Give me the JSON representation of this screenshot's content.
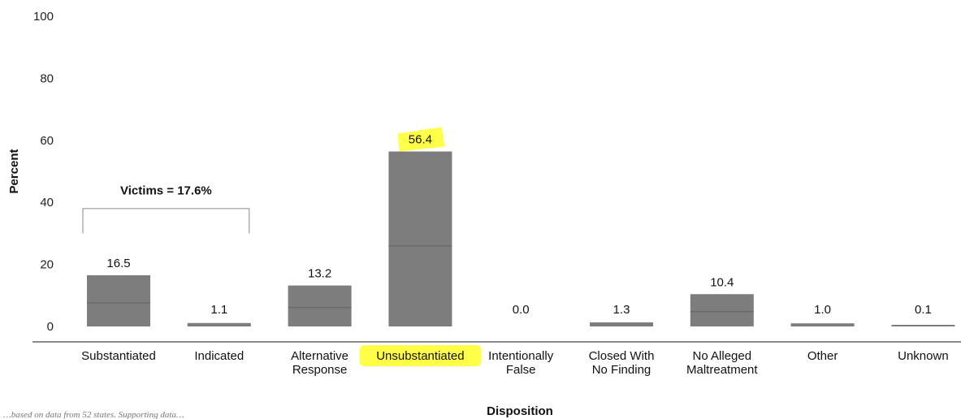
{
  "chart_data": {
    "type": "bar",
    "title": "",
    "xlabel": "Disposition",
    "ylabel": "Percent",
    "ylim": [
      0,
      100
    ],
    "yticks": [
      0,
      20,
      40,
      60,
      80,
      100
    ],
    "grid": false,
    "categories": [
      "Substantiated",
      "Indicated",
      "Alternative\nResponse",
      "Unsubstantiated",
      "Intentionally\nFalse",
      "Closed With\nNo Finding",
      "No Alleged\nMaltreatment",
      "Other",
      "Unknown"
    ],
    "values": [
      16.5,
      1.1,
      13.2,
      56.4,
      0.0,
      1.3,
      10.4,
      1.0,
      0.1
    ],
    "value_labels": [
      "16.5",
      "1.1",
      "13.2",
      "56.4",
      "0.0",
      "1.3",
      "10.4",
      "1.0",
      "0.1"
    ],
    "highlighted_category": "Unsubstantiated",
    "highlighted_value_label": "56.4",
    "annotation": {
      "text": "Victims = 17.6%",
      "spans_categories": [
        "Substantiated",
        "Indicated"
      ]
    },
    "colors": {
      "bar": "#7d7d7d",
      "bar_dark": "#5f5f5f",
      "highlight": "#ffff33",
      "axis": "#444444"
    }
  },
  "footnote": "…based on data from 52 states. Supporting data…"
}
